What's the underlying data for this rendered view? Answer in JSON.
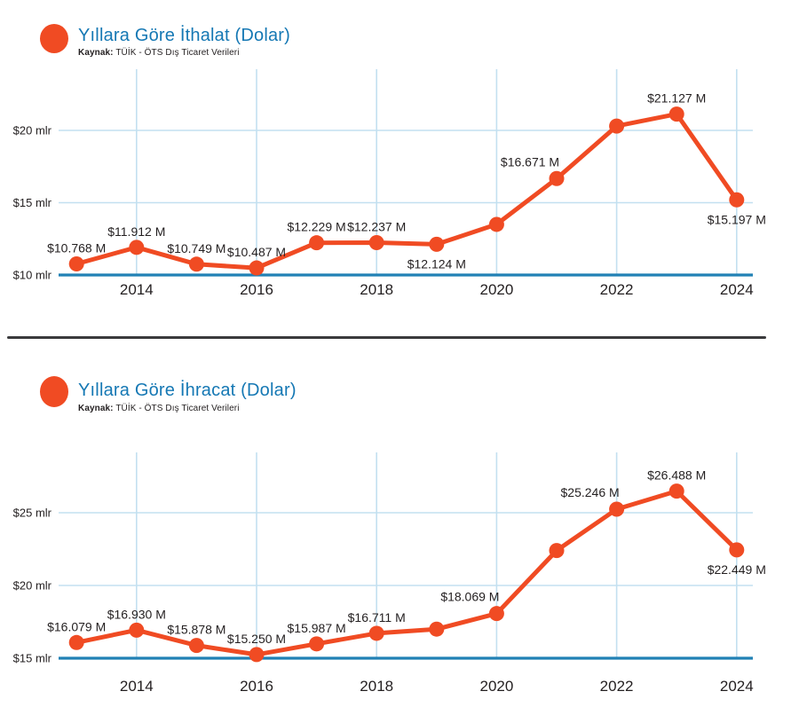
{
  "colors": {
    "accent_orange": "#f04b23",
    "title_blue": "#1578b4",
    "axis_blue": "#2181b5",
    "grid_blue": "#c3e0f0",
    "text_dark": "#231f20",
    "divider_gray": "#3a3a3c",
    "background": "#ffffff"
  },
  "chart_data": [
    {
      "type": "line",
      "title": "Yıllara Göre İthalat (Dolar)",
      "source_prefix": "Kaynak:",
      "source": "TÜİK - ÖTS Dış Ticaret Verileri",
      "x": [
        2013,
        2014,
        2015,
        2016,
        2017,
        2018,
        2019,
        2020,
        2021,
        2022,
        2023,
        2024
      ],
      "values": [
        10.768,
        11.912,
        10.749,
        10.487,
        12.229,
        12.237,
        12.124,
        13.5,
        16.671,
        20.3,
        21.127,
        15.197
      ],
      "point_labels": [
        "$10.768 M",
        "$11.912 M",
        "$10.749 M",
        "$10.487 M",
        "$12.229 M",
        "$12.237 M",
        "$12.124 M",
        null,
        "$16.671 M",
        null,
        "$21.127 M",
        "$15.197 M"
      ],
      "label_placement": [
        "above",
        "above",
        "above",
        "above",
        "above",
        "above",
        "below",
        null,
        "above-left",
        null,
        "above",
        "below"
      ],
      "y_ticks": [
        {
          "value": 10,
          "label": "$10 mlr"
        },
        {
          "value": 15,
          "label": "$15 mlr"
        },
        {
          "value": 20,
          "label": "$20 mlr"
        }
      ],
      "x_ticks": [
        2014,
        2016,
        2018,
        2020,
        2022,
        2024
      ],
      "xlim": [
        2013,
        2024
      ],
      "ylim": [
        10,
        24.2
      ],
      "grid": true,
      "legend": "none"
    },
    {
      "type": "line",
      "title": "Yıllara Göre İhracat (Dolar)",
      "source_prefix": "Kaynak:",
      "source": "TÜİK - ÖTS Dış Ticaret Verileri",
      "x": [
        2013,
        2014,
        2015,
        2016,
        2017,
        2018,
        2019,
        2020,
        2021,
        2022,
        2023,
        2024
      ],
      "values": [
        16.079,
        16.93,
        15.878,
        15.25,
        15.987,
        16.711,
        17.0,
        18.069,
        22.4,
        25.246,
        26.488,
        22.449
      ],
      "point_labels": [
        "$16.079 M",
        "$16.930 M",
        "$15.878 M",
        "$15.250 M",
        "$15.987 M",
        "$16.711 M",
        null,
        "$18.069 M",
        null,
        "$25.246 M",
        "$26.488 M",
        "$22.449 M"
      ],
      "label_placement": [
        "above",
        "above",
        "above",
        "above",
        "above",
        "above",
        null,
        "above-left",
        null,
        "above-left",
        "above",
        "below"
      ],
      "y_ticks": [
        {
          "value": 15,
          "label": "$15 mlr"
        },
        {
          "value": 20,
          "label": "$20 mlr"
        },
        {
          "value": 25,
          "label": "$25 mlr"
        }
      ],
      "x_ticks": [
        2014,
        2016,
        2018,
        2020,
        2022,
        2024
      ],
      "xlim": [
        2013,
        2024
      ],
      "ylim": [
        15,
        29.1
      ],
      "grid": true,
      "legend": "none"
    }
  ]
}
